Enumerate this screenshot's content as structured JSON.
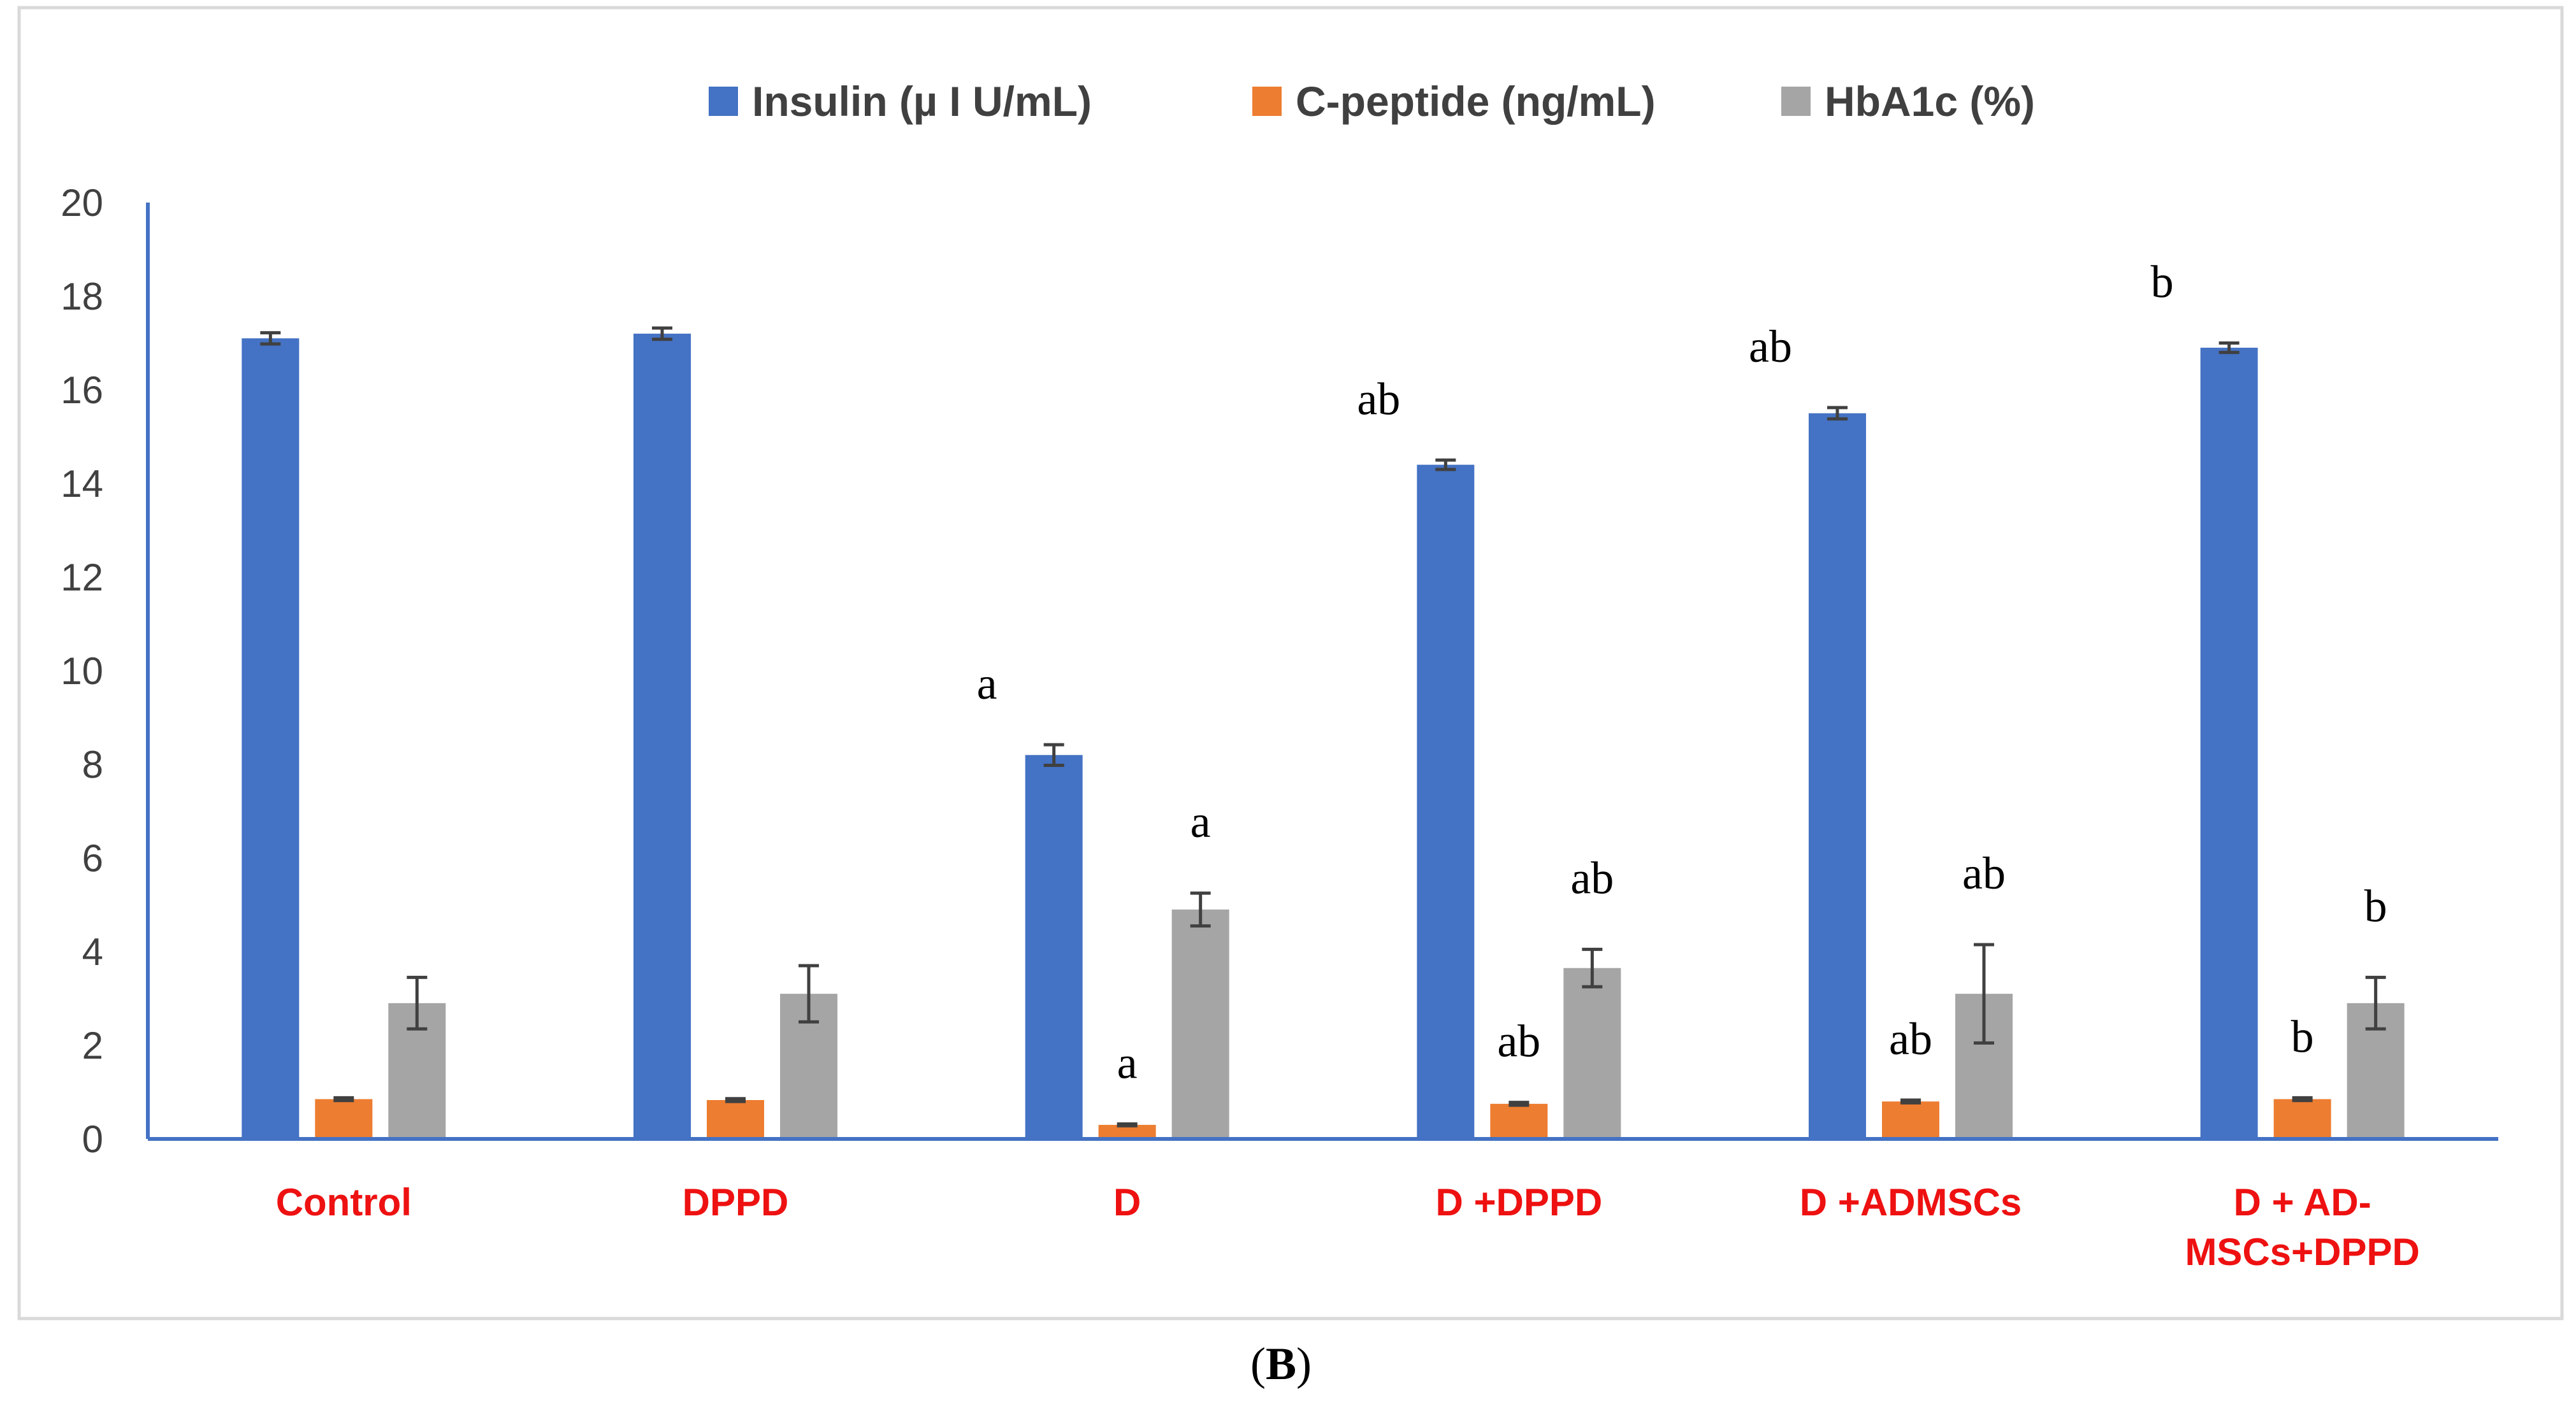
{
  "chart_data": {
    "type": "bar",
    "categories": [
      [
        "Control"
      ],
      [
        "DPPD"
      ],
      [
        "D"
      ],
      [
        "D +DPPD"
      ],
      [
        "D +ADMSCs"
      ],
      [
        "D + AD-",
        "MSCs+DPPD"
      ]
    ],
    "series": [
      {
        "name": "Insulin (µ I U/mL)",
        "color": "#4472c4",
        "values": [
          17.1,
          17.2,
          8.2,
          14.4,
          15.5,
          16.9
        ],
        "errors": [
          0.12,
          0.12,
          0.22,
          0.1,
          0.12,
          0.1
        ],
        "annotations": [
          "",
          "",
          "a",
          "ab",
          "ab",
          "b"
        ]
      },
      {
        "name": "C-peptide (ng/mL)",
        "color": "#ed7d31",
        "values": [
          0.85,
          0.83,
          0.3,
          0.75,
          0.8,
          0.85
        ],
        "errors": [
          0.03,
          0.03,
          0.02,
          0.03,
          0.03,
          0.03
        ],
        "annotations": [
          "",
          "",
          "a",
          "ab",
          "ab",
          "b"
        ]
      },
      {
        "name": "HbA1c (%)",
        "color": "#a5a5a5",
        "values": [
          2.9,
          3.1,
          4.9,
          3.65,
          3.1,
          2.9
        ],
        "errors": [
          0.55,
          0.6,
          0.35,
          0.4,
          1.05,
          0.55
        ],
        "annotations": [
          "",
          "",
          "a",
          "ab",
          "ab",
          "b"
        ]
      }
    ],
    "yticks": [
      0,
      2,
      4,
      6,
      8,
      10,
      12,
      14,
      16,
      18,
      20
    ],
    "ylim": [
      0,
      20
    ],
    "legend_position": "top",
    "grid": false,
    "title": "",
    "xlabel": "",
    "ylabel": "",
    "category_label_color": "#ee1111",
    "axis_color": "#4472c4"
  },
  "caption": {
    "open": "(",
    "letter": "B",
    "close": ")"
  }
}
